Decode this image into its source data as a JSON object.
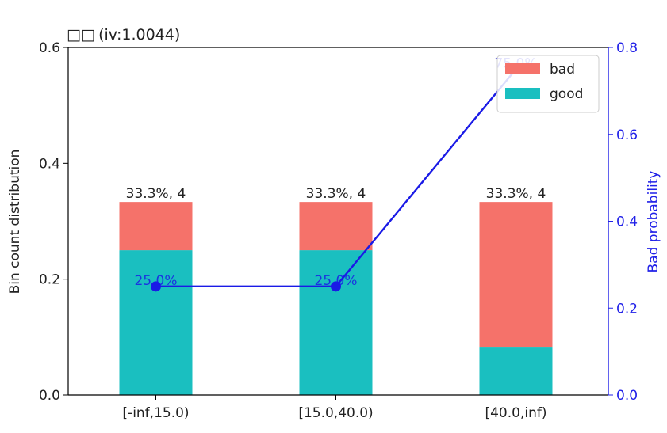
{
  "chart_data": {
    "type": "bar",
    "title": "  (iv:1.0044)",
    "title_prefix_glyphs": "□□",
    "categories": [
      "[-inf,15.0)",
      "[15.0,40.0)",
      "[40.0,inf)"
    ],
    "series": [
      {
        "name": "good",
        "values": [
          0.25,
          0.25,
          0.0833
        ],
        "color": "#1ABFC0"
      },
      {
        "name": "bad",
        "values": [
          0.0833,
          0.0833,
          0.25
        ],
        "color": "#F5726A"
      }
    ],
    "bar_labels": [
      "33.3%, 4",
      "33.3%, 4",
      "33.3%, 4"
    ],
    "line_series": {
      "name": "Bad probability",
      "values": [
        0.25,
        0.25,
        0.75
      ],
      "labels": [
        "25.0%",
        "25.0%",
        "75.0%"
      ],
      "color": "#1A1AE6"
    },
    "ylabel": "Bin count distribution",
    "ylim": [
      0,
      0.6
    ],
    "yticks": [
      "0.0",
      "0.2",
      "0.4",
      "0.6"
    ],
    "y2label": "Bad probability",
    "y2lim": [
      0,
      0.8
    ],
    "y2ticks": [
      "0.0",
      "0.2",
      "0.4",
      "0.6",
      "0.8"
    ],
    "legend": {
      "position": "top-right",
      "entries": [
        "bad",
        "good"
      ]
    },
    "grid": false
  }
}
